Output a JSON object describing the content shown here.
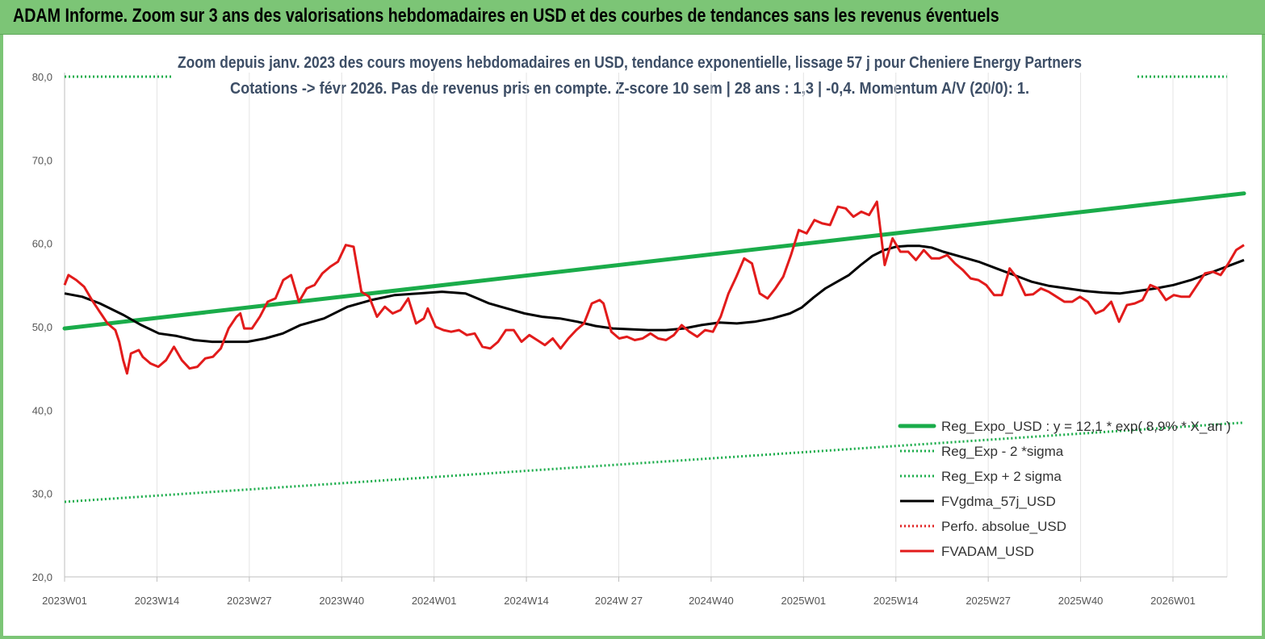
{
  "header": {
    "title": "ADAM Informe. Zoom sur 3 ans des valorisations hebdomadaires en USD et des courbes de tendances sans les revenus éventuels"
  },
  "chart_data": {
    "type": "line",
    "title_line1": "Zoom depuis janv. 2023 des cours moyens hebdomadaires en USD, tendance exponentielle, lissage 57 j pour Cheniere Energy Partners",
    "title_line2": "Cotations -> févr 2026. Pas de revenus pris en compte. Z-score 10 sem | 28 ans : 1,3 | -0,4. Momentum A/V (20/0): 1.",
    "x_tick_labels": [
      "2023W01",
      "2023W14",
      "2023W27",
      "2023W40",
      "2024W01",
      "2024W14",
      "2024W 27",
      "2024W40",
      "2025W01",
      "2025W14",
      "2025W27",
      "2025W40",
      "2026W01"
    ],
    "y_tick_labels": [
      "20,0",
      "30,0",
      "40,0",
      "50,0",
      "60,0",
      "70,0",
      "80,0"
    ],
    "ylim": [
      20,
      80
    ],
    "n_weeks": 167,
    "grid": "vertical",
    "legend_position": "bottom-right",
    "series": [
      {
        "name": "Reg_Expo_USD : y = 12,1 * exp( 8,9% * X_an )",
        "style": "solid-thick",
        "color": "#1aac4a",
        "points": [
          [
            0,
            49.8
          ],
          [
            166,
            66.0
          ]
        ]
      },
      {
        "name": "Reg_Exp - 2 *sigma",
        "style": "dotted",
        "color": "#1aac4a",
        "points": [
          [
            0,
            29.0
          ],
          [
            166,
            38.5
          ]
        ]
      },
      {
        "name": "Reg_Exp + 2 sigma",
        "style": "dotted",
        "color": "#1aac4a",
        "points": [
          [
            0,
            80.0
          ],
          [
            15,
            80.0
          ]
        ]
      },
      {
        "name": "FVgdma_57j_USD",
        "style": "solid",
        "color": "#000000",
        "points": [
          [
            0,
            54.0
          ],
          [
            3,
            53.6
          ],
          [
            6,
            52.8
          ],
          [
            10,
            51.4
          ],
          [
            13,
            50.2
          ],
          [
            16,
            49.2
          ],
          [
            19,
            48.9
          ],
          [
            22,
            48.4
          ],
          [
            25,
            48.2
          ],
          [
            28,
            48.2
          ],
          [
            31,
            48.2
          ],
          [
            34,
            48.6
          ],
          [
            37,
            49.2
          ],
          [
            40,
            50.2
          ],
          [
            44,
            51.0
          ],
          [
            48,
            52.4
          ],
          [
            52,
            53.2
          ],
          [
            56,
            53.8
          ],
          [
            60,
            54.0
          ],
          [
            64,
            54.2
          ],
          [
            68,
            54.0
          ],
          [
            70,
            53.4
          ],
          [
            72,
            52.8
          ],
          [
            75,
            52.2
          ],
          [
            78,
            51.6
          ],
          [
            81,
            51.2
          ],
          [
            84,
            51.0
          ],
          [
            87,
            50.6
          ],
          [
            90,
            50.1
          ],
          [
            93,
            49.8
          ],
          [
            96,
            49.7
          ],
          [
            99,
            49.6
          ],
          [
            102,
            49.6
          ],
          [
            105,
            49.8
          ],
          [
            108,
            50.2
          ],
          [
            111,
            50.5
          ],
          [
            114,
            50.4
          ],
          [
            117,
            50.6
          ],
          [
            120,
            51.0
          ],
          [
            123,
            51.6
          ],
          [
            125,
            52.3
          ],
          [
            127,
            53.5
          ],
          [
            129,
            54.6
          ],
          [
            131,
            55.4
          ],
          [
            133,
            56.2
          ],
          [
            135,
            57.4
          ],
          [
            137,
            58.5
          ],
          [
            139,
            59.2
          ],
          [
            141,
            59.6
          ],
          [
            143,
            59.7
          ],
          [
            145,
            59.7
          ],
          [
            147,
            59.5
          ],
          [
            149,
            59.0
          ],
          [
            152,
            58.4
          ],
          [
            155,
            57.8
          ],
          [
            158,
            57.0
          ],
          [
            161,
            56.2
          ],
          [
            164,
            55.4
          ],
          [
            167,
            54.9
          ],
          [
            170,
            54.6
          ],
          [
            173,
            54.3
          ],
          [
            176,
            54.1
          ],
          [
            179,
            54.0
          ],
          [
            182,
            54.3
          ],
          [
            185,
            54.6
          ],
          [
            188,
            55.0
          ],
          [
            191,
            55.6
          ],
          [
            194,
            56.4
          ],
          [
            197,
            57.2
          ],
          [
            200,
            58.0
          ]
        ]
      },
      {
        "name": "Perfo. absolue_USD",
        "style": "dotted",
        "color": "#e02020",
        "points": []
      },
      {
        "name": "FVADAM_USD",
        "style": "solid",
        "color": "#e21b1b",
        "points": [
          [
            0,
            55.0
          ],
          [
            1,
            56.2
          ],
          [
            3,
            55.6
          ],
          [
            5,
            54.8
          ],
          [
            7,
            53.2
          ],
          [
            9,
            51.8
          ],
          [
            11,
            50.4
          ],
          [
            13,
            49.6
          ],
          [
            14,
            48.2
          ],
          [
            15,
            46.0
          ],
          [
            16,
            44.4
          ],
          [
            17,
            46.8
          ],
          [
            19,
            47.2
          ],
          [
            20,
            46.4
          ],
          [
            22,
            45.6
          ],
          [
            24,
            45.2
          ],
          [
            26,
            46.0
          ],
          [
            28,
            47.6
          ],
          [
            30,
            46.0
          ],
          [
            32,
            45.0
          ],
          [
            34,
            45.2
          ],
          [
            36,
            46.2
          ],
          [
            38,
            46.4
          ],
          [
            40,
            47.4
          ],
          [
            42,
            49.8
          ],
          [
            44,
            51.2
          ],
          [
            45,
            51.6
          ],
          [
            46,
            49.8
          ],
          [
            48,
            49.8
          ],
          [
            50,
            51.2
          ],
          [
            52,
            53.0
          ],
          [
            54,
            53.4
          ],
          [
            56,
            55.6
          ],
          [
            58,
            56.2
          ],
          [
            60,
            53.0
          ],
          [
            62,
            54.6
          ],
          [
            64,
            55.0
          ],
          [
            66,
            56.4
          ],
          [
            68,
            57.2
          ],
          [
            70,
            57.8
          ],
          [
            72,
            59.8
          ],
          [
            74,
            59.6
          ],
          [
            76,
            54.2
          ],
          [
            78,
            53.6
          ],
          [
            80,
            51.2
          ],
          [
            82,
            52.4
          ],
          [
            84,
            51.6
          ],
          [
            86,
            52.0
          ],
          [
            88,
            53.4
          ],
          [
            90,
            50.4
          ],
          [
            92,
            51.0
          ],
          [
            93,
            52.2
          ],
          [
            95,
            50.0
          ],
          [
            97,
            49.6
          ],
          [
            99,
            49.4
          ],
          [
            101,
            49.6
          ],
          [
            103,
            49.0
          ],
          [
            105,
            49.2
          ],
          [
            107,
            47.6
          ],
          [
            109,
            47.4
          ],
          [
            111,
            48.2
          ],
          [
            113,
            49.6
          ],
          [
            115,
            49.6
          ],
          [
            117,
            48.2
          ],
          [
            119,
            49.0
          ],
          [
            121,
            48.4
          ],
          [
            123,
            47.8
          ],
          [
            125,
            48.6
          ],
          [
            127,
            47.4
          ],
          [
            129,
            48.6
          ],
          [
            131,
            49.6
          ],
          [
            133,
            50.4
          ],
          [
            135,
            52.8
          ],
          [
            137,
            53.2
          ],
          [
            138,
            52.8
          ],
          [
            140,
            49.4
          ],
          [
            142,
            48.6
          ],
          [
            144,
            48.8
          ],
          [
            146,
            48.4
          ],
          [
            148,
            48.6
          ],
          [
            150,
            49.2
          ],
          [
            152,
            48.6
          ],
          [
            154,
            48.4
          ],
          [
            156,
            49.0
          ],
          [
            158,
            50.2
          ],
          [
            160,
            49.4
          ],
          [
            162,
            48.8
          ],
          [
            164,
            49.6
          ],
          [
            166,
            49.4
          ],
          [
            168,
            51.2
          ],
          [
            170,
            54.0
          ],
          [
            172,
            56.0
          ],
          [
            174,
            58.2
          ],
          [
            176,
            57.6
          ],
          [
            178,
            54.0
          ],
          [
            180,
            53.4
          ],
          [
            182,
            54.6
          ],
          [
            184,
            56.0
          ],
          [
            186,
            58.6
          ],
          [
            188,
            61.6
          ],
          [
            190,
            61.2
          ],
          [
            192,
            62.8
          ],
          [
            194,
            62.4
          ],
          [
            196,
            62.2
          ],
          [
            198,
            64.4
          ],
          [
            200,
            64.2
          ],
          [
            202,
            63.2
          ],
          [
            204,
            63.8
          ],
          [
            206,
            63.4
          ],
          [
            208,
            65.0
          ],
          [
            210,
            57.4
          ],
          [
            212,
            60.6
          ],
          [
            214,
            59.0
          ],
          [
            216,
            59.0
          ],
          [
            218,
            58.0
          ],
          [
            220,
            59.2
          ],
          [
            222,
            58.2
          ],
          [
            224,
            58.2
          ],
          [
            226,
            58.6
          ],
          [
            228,
            57.6
          ],
          [
            230,
            56.8
          ],
          [
            232,
            55.8
          ],
          [
            234,
            55.6
          ],
          [
            236,
            55.0
          ],
          [
            238,
            53.8
          ],
          [
            240,
            53.8
          ],
          [
            242,
            57.0
          ],
          [
            244,
            55.8
          ],
          [
            246,
            53.8
          ],
          [
            248,
            53.9
          ],
          [
            250,
            54.6
          ],
          [
            252,
            54.2
          ],
          [
            254,
            53.6
          ],
          [
            256,
            53.0
          ],
          [
            258,
            53.0
          ],
          [
            260,
            53.6
          ],
          [
            262,
            53.0
          ],
          [
            264,
            51.6
          ],
          [
            266,
            52.0
          ],
          [
            268,
            53.0
          ],
          [
            270,
            50.6
          ],
          [
            272,
            52.6
          ],
          [
            274,
            52.8
          ],
          [
            276,
            53.2
          ],
          [
            278,
            55.0
          ],
          [
            280,
            54.6
          ],
          [
            282,
            53.2
          ],
          [
            284,
            53.8
          ],
          [
            286,
            53.6
          ],
          [
            288,
            53.6
          ],
          [
            290,
            55.0
          ],
          [
            292,
            56.4
          ],
          [
            294,
            56.6
          ],
          [
            296,
            56.2
          ],
          [
            298,
            57.6
          ],
          [
            300,
            59.2
          ],
          [
            302,
            59.8
          ]
        ]
      }
    ]
  }
}
